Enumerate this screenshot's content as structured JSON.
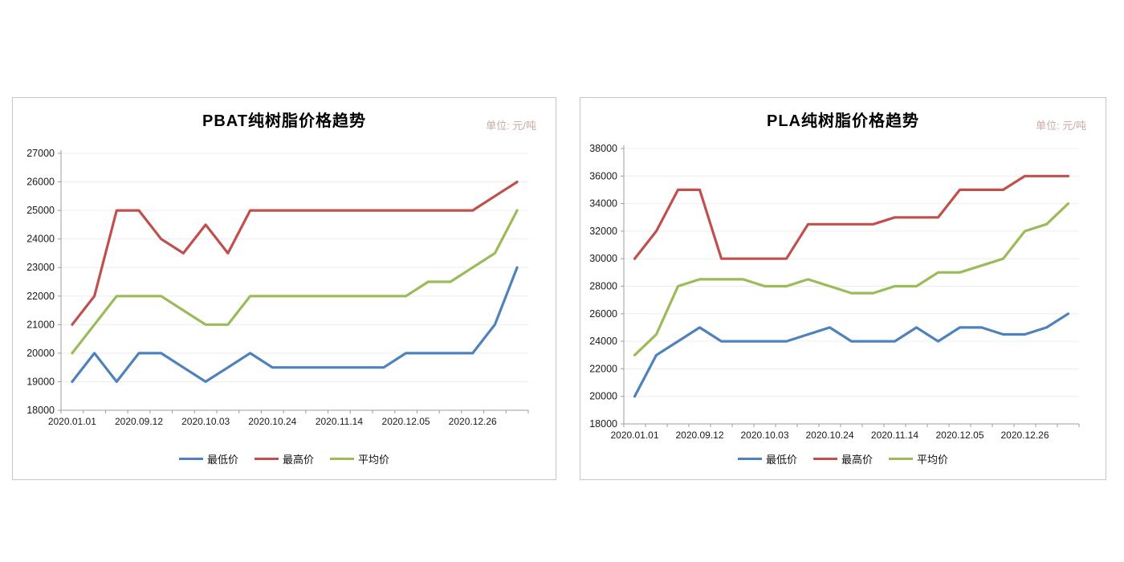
{
  "chart_data": [
    {
      "type": "line",
      "title": "PBAT纯树脂价格趋势",
      "unit_label": "单位: 元/吨",
      "ylabel": "",
      "xlabel": "",
      "ylim": [
        18000,
        27000
      ],
      "y_step": 1000,
      "y_ticks": [
        18000,
        19000,
        20000,
        21000,
        22000,
        23000,
        24000,
        25000,
        26000,
        27000
      ],
      "n_points": 21,
      "x_tick_labels": [
        "2020.01.01",
        "2020.09.12",
        "2020.10.03",
        "2020.10.24",
        "2020.11.14",
        "2020.12.05",
        "2020.12.26"
      ],
      "x_label_indices": [
        0,
        3,
        6,
        9,
        12,
        15,
        18
      ],
      "grid": true,
      "legend_position": "bottom",
      "series": [
        {
          "name": "最低价",
          "color": "#4F81BD",
          "values": [
            19000,
            20000,
            19000,
            20000,
            20000,
            19500,
            19000,
            19500,
            20000,
            19500,
            19500,
            19500,
            19500,
            19500,
            19500,
            20000,
            20000,
            20000,
            20000,
            21000,
            23000
          ]
        },
        {
          "name": "最高价",
          "color": "#C0504D",
          "values": [
            21000,
            22000,
            25000,
            25000,
            24000,
            23500,
            24500,
            23500,
            25000,
            25000,
            25000,
            25000,
            25000,
            25000,
            25000,
            25000,
            25000,
            25000,
            25000,
            25500,
            26000
          ]
        },
        {
          "name": "平均价",
          "color": "#9BBB59",
          "values": [
            20000,
            21000,
            22000,
            22000,
            22000,
            21500,
            21000,
            21000,
            22000,
            22000,
            22000,
            22000,
            22000,
            22000,
            22000,
            22000,
            22500,
            22500,
            23000,
            23500,
            25000
          ]
        }
      ]
    },
    {
      "type": "line",
      "title": "PLA纯树脂价格趋势",
      "unit_label": "单位: 元/吨",
      "ylabel": "",
      "xlabel": "",
      "ylim": [
        18000,
        38000
      ],
      "y_step": 2000,
      "y_ticks": [
        18000,
        20000,
        22000,
        24000,
        26000,
        28000,
        30000,
        32000,
        34000,
        36000,
        38000
      ],
      "n_points": 21,
      "x_tick_labels": [
        "2020.01.01",
        "2020.09.12",
        "2020.10.03",
        "2020.10.24",
        "2020.11.14",
        "2020.12.05",
        "2020.12.26"
      ],
      "x_label_indices": [
        0,
        3,
        6,
        9,
        12,
        15,
        18
      ],
      "grid": true,
      "legend_position": "bottom",
      "series": [
        {
          "name": "最低价",
          "color": "#4F81BD",
          "values": [
            20000,
            23000,
            24000,
            25000,
            24000,
            24000,
            24000,
            24000,
            24500,
            25000,
            24000,
            24000,
            24000,
            25000,
            24000,
            25000,
            25000,
            24500,
            24500,
            25000,
            26000
          ]
        },
        {
          "name": "最高价",
          "color": "#C0504D",
          "values": [
            30000,
            32000,
            35000,
            35000,
            30000,
            30000,
            30000,
            30000,
            32500,
            32500,
            32500,
            32500,
            33000,
            33000,
            33000,
            35000,
            35000,
            35000,
            36000,
            36000,
            36000
          ]
        },
        {
          "name": "平均价",
          "color": "#9BBB59",
          "values": [
            23000,
            24500,
            28000,
            28500,
            28500,
            28500,
            28000,
            28000,
            28500,
            28000,
            27500,
            27500,
            28000,
            28000,
            29000,
            29000,
            29500,
            30000,
            32000,
            32500,
            34000
          ]
        }
      ]
    }
  ],
  "style": {
    "grid_color": "#ededed",
    "axis_color": "#9c9c9c",
    "tick_text_color": "#1a1a1a"
  }
}
